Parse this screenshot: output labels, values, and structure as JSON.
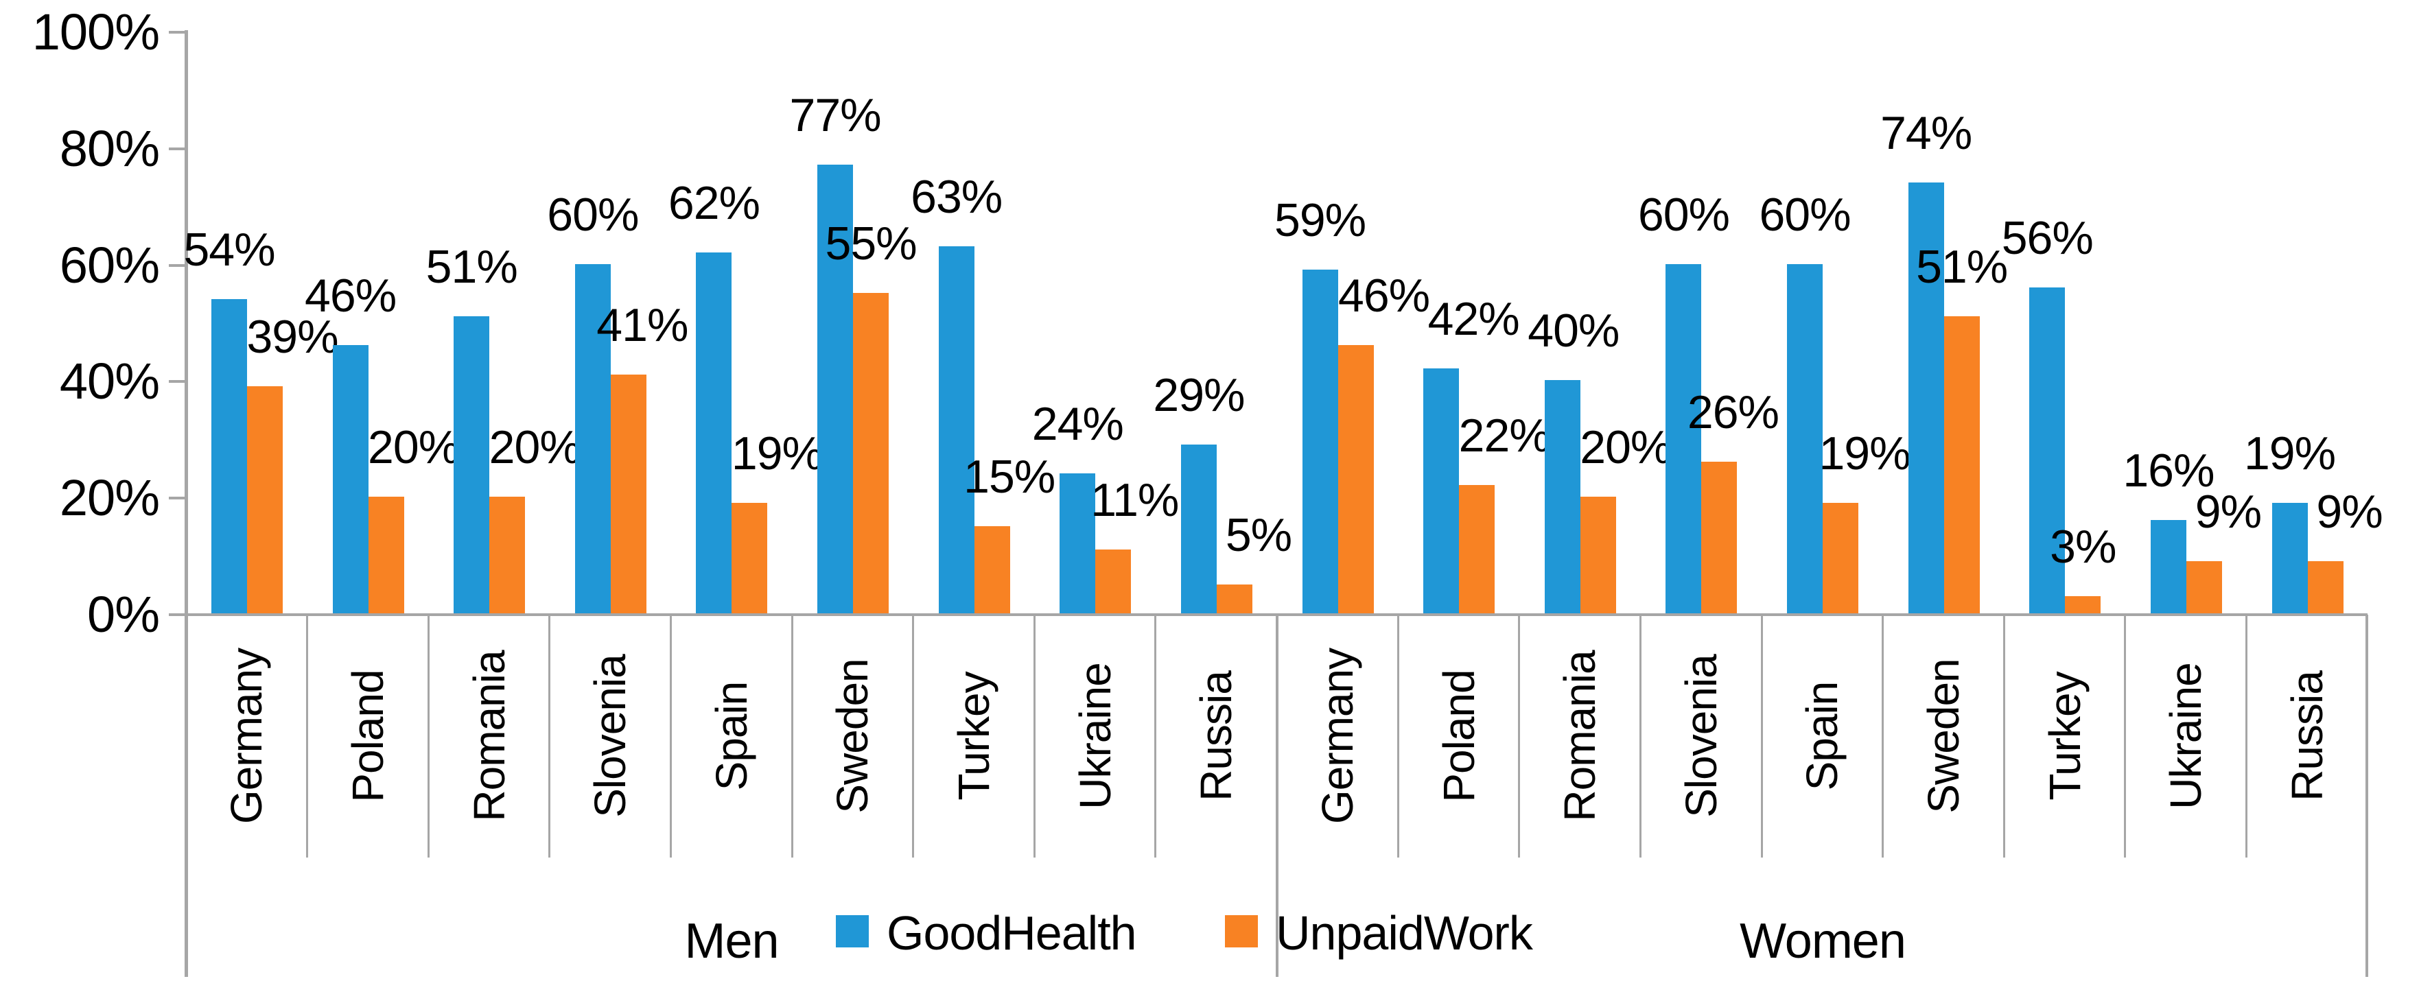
{
  "chart_data": {
    "type": "bar",
    "title": "",
    "groups": [
      "Men",
      "Women"
    ],
    "categories": [
      "Germany",
      "Poland",
      "Romania",
      "Slovenia",
      "Spain",
      "Sweden",
      "Turkey",
      "Ukraine",
      "Russia"
    ],
    "series": [
      {
        "name": "GoodHealth",
        "color": "#2097D6",
        "values": {
          "Men": [
            54,
            46,
            51,
            60,
            62,
            77,
            63,
            24,
            29
          ],
          "Women": [
            59,
            42,
            40,
            60,
            60,
            74,
            56,
            16,
            19
          ]
        }
      },
      {
        "name": "UnpaidWork",
        "color": "#F88223",
        "values": {
          "Men": [
            39,
            20,
            20,
            41,
            19,
            55,
            15,
            11,
            5
          ],
          "Women": [
            46,
            22,
            20,
            26,
            19,
            51,
            3,
            9,
            9
          ]
        }
      }
    ],
    "y_axis": {
      "min": 0,
      "max": 100,
      "step": 20,
      "tick_labels": [
        "0%",
        "20%",
        "40%",
        "60%",
        "80%",
        "100%"
      ]
    },
    "data_label_suffix": "%",
    "legend": {
      "position": "bottom-center",
      "items": [
        "GoodHealth",
        "UnpaidWork"
      ]
    },
    "colors": {
      "axis_line": "#A6A6A6",
      "text": "#000000",
      "background": "#FFFFFF"
    },
    "layout_hints": {
      "grid": "off",
      "bars_adjacent_pair": true,
      "category_labels_rotated_90": true,
      "label_dx": {
        "Men": {
          "GoodHealth": [
            0,
            0,
            0,
            0,
            0,
            0,
            0,
            0,
            0
          ],
          "UnpaidWork": [
            40,
            40,
            40,
            20,
            40,
            0,
            25,
            31,
            35
          ]
        },
        "Women": {
          "GoodHealth": [
            0,
            47,
            16,
            0,
            0,
            0,
            0,
            0,
            0
          ],
          "UnpaidWork": [
            41,
            40,
            40,
            20,
            35,
            0,
            0,
            35,
            35
          ]
        }
      }
    }
  }
}
